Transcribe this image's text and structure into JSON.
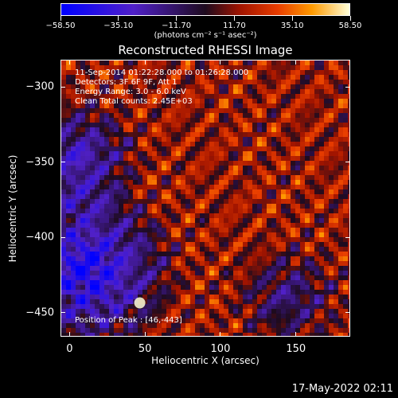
{
  "chart_data": {
    "type": "heatmap",
    "title": "Reconstructed RHESSI Image",
    "xlabel": "Heliocentric X (arcsec)",
    "ylabel": "Heliocentric Y (arcsec)",
    "xlim": [
      -6,
      186
    ],
    "ylim": [
      -466,
      -282
    ],
    "x_ticks": [
      "0",
      "50",
      "100",
      "150"
    ],
    "x_tick_values": [
      0,
      50,
      100,
      150
    ],
    "y_ticks": [
      "−300",
      "−350",
      "−400",
      "−450"
    ],
    "y_tick_values": [
      -300,
      -350,
      -400,
      -450
    ],
    "colorbar": {
      "ticks": [
        "−58.50",
        "−35.10",
        "−11.70",
        "11.70",
        "35.10",
        "58.50"
      ],
      "units": "(photons cm⁻² s⁻¹ asec⁻²)",
      "range": [
        -58.5,
        58.5
      ],
      "colors": [
        "#0000ff",
        "#5020c8",
        "#1e0b1e",
        "#a01400",
        "#e83c00",
        "#ff9a00",
        "#ffffd8"
      ]
    },
    "annotations": {
      "time_range": "11-Sep-2014 01:22:28.000 to 01:26:28.000",
      "detectors": "Detectors: 3F 6F 9F, Att 1",
      "energy": "Energy Range: 3.0 - 6.0 keV",
      "clean": "Clean     Total counts: 2.45E+03",
      "peak": "Position of Peak : [46,-443]"
    },
    "peak_position": [
      46,
      -443
    ]
  },
  "timestamp": "17-May-2022 02:11"
}
